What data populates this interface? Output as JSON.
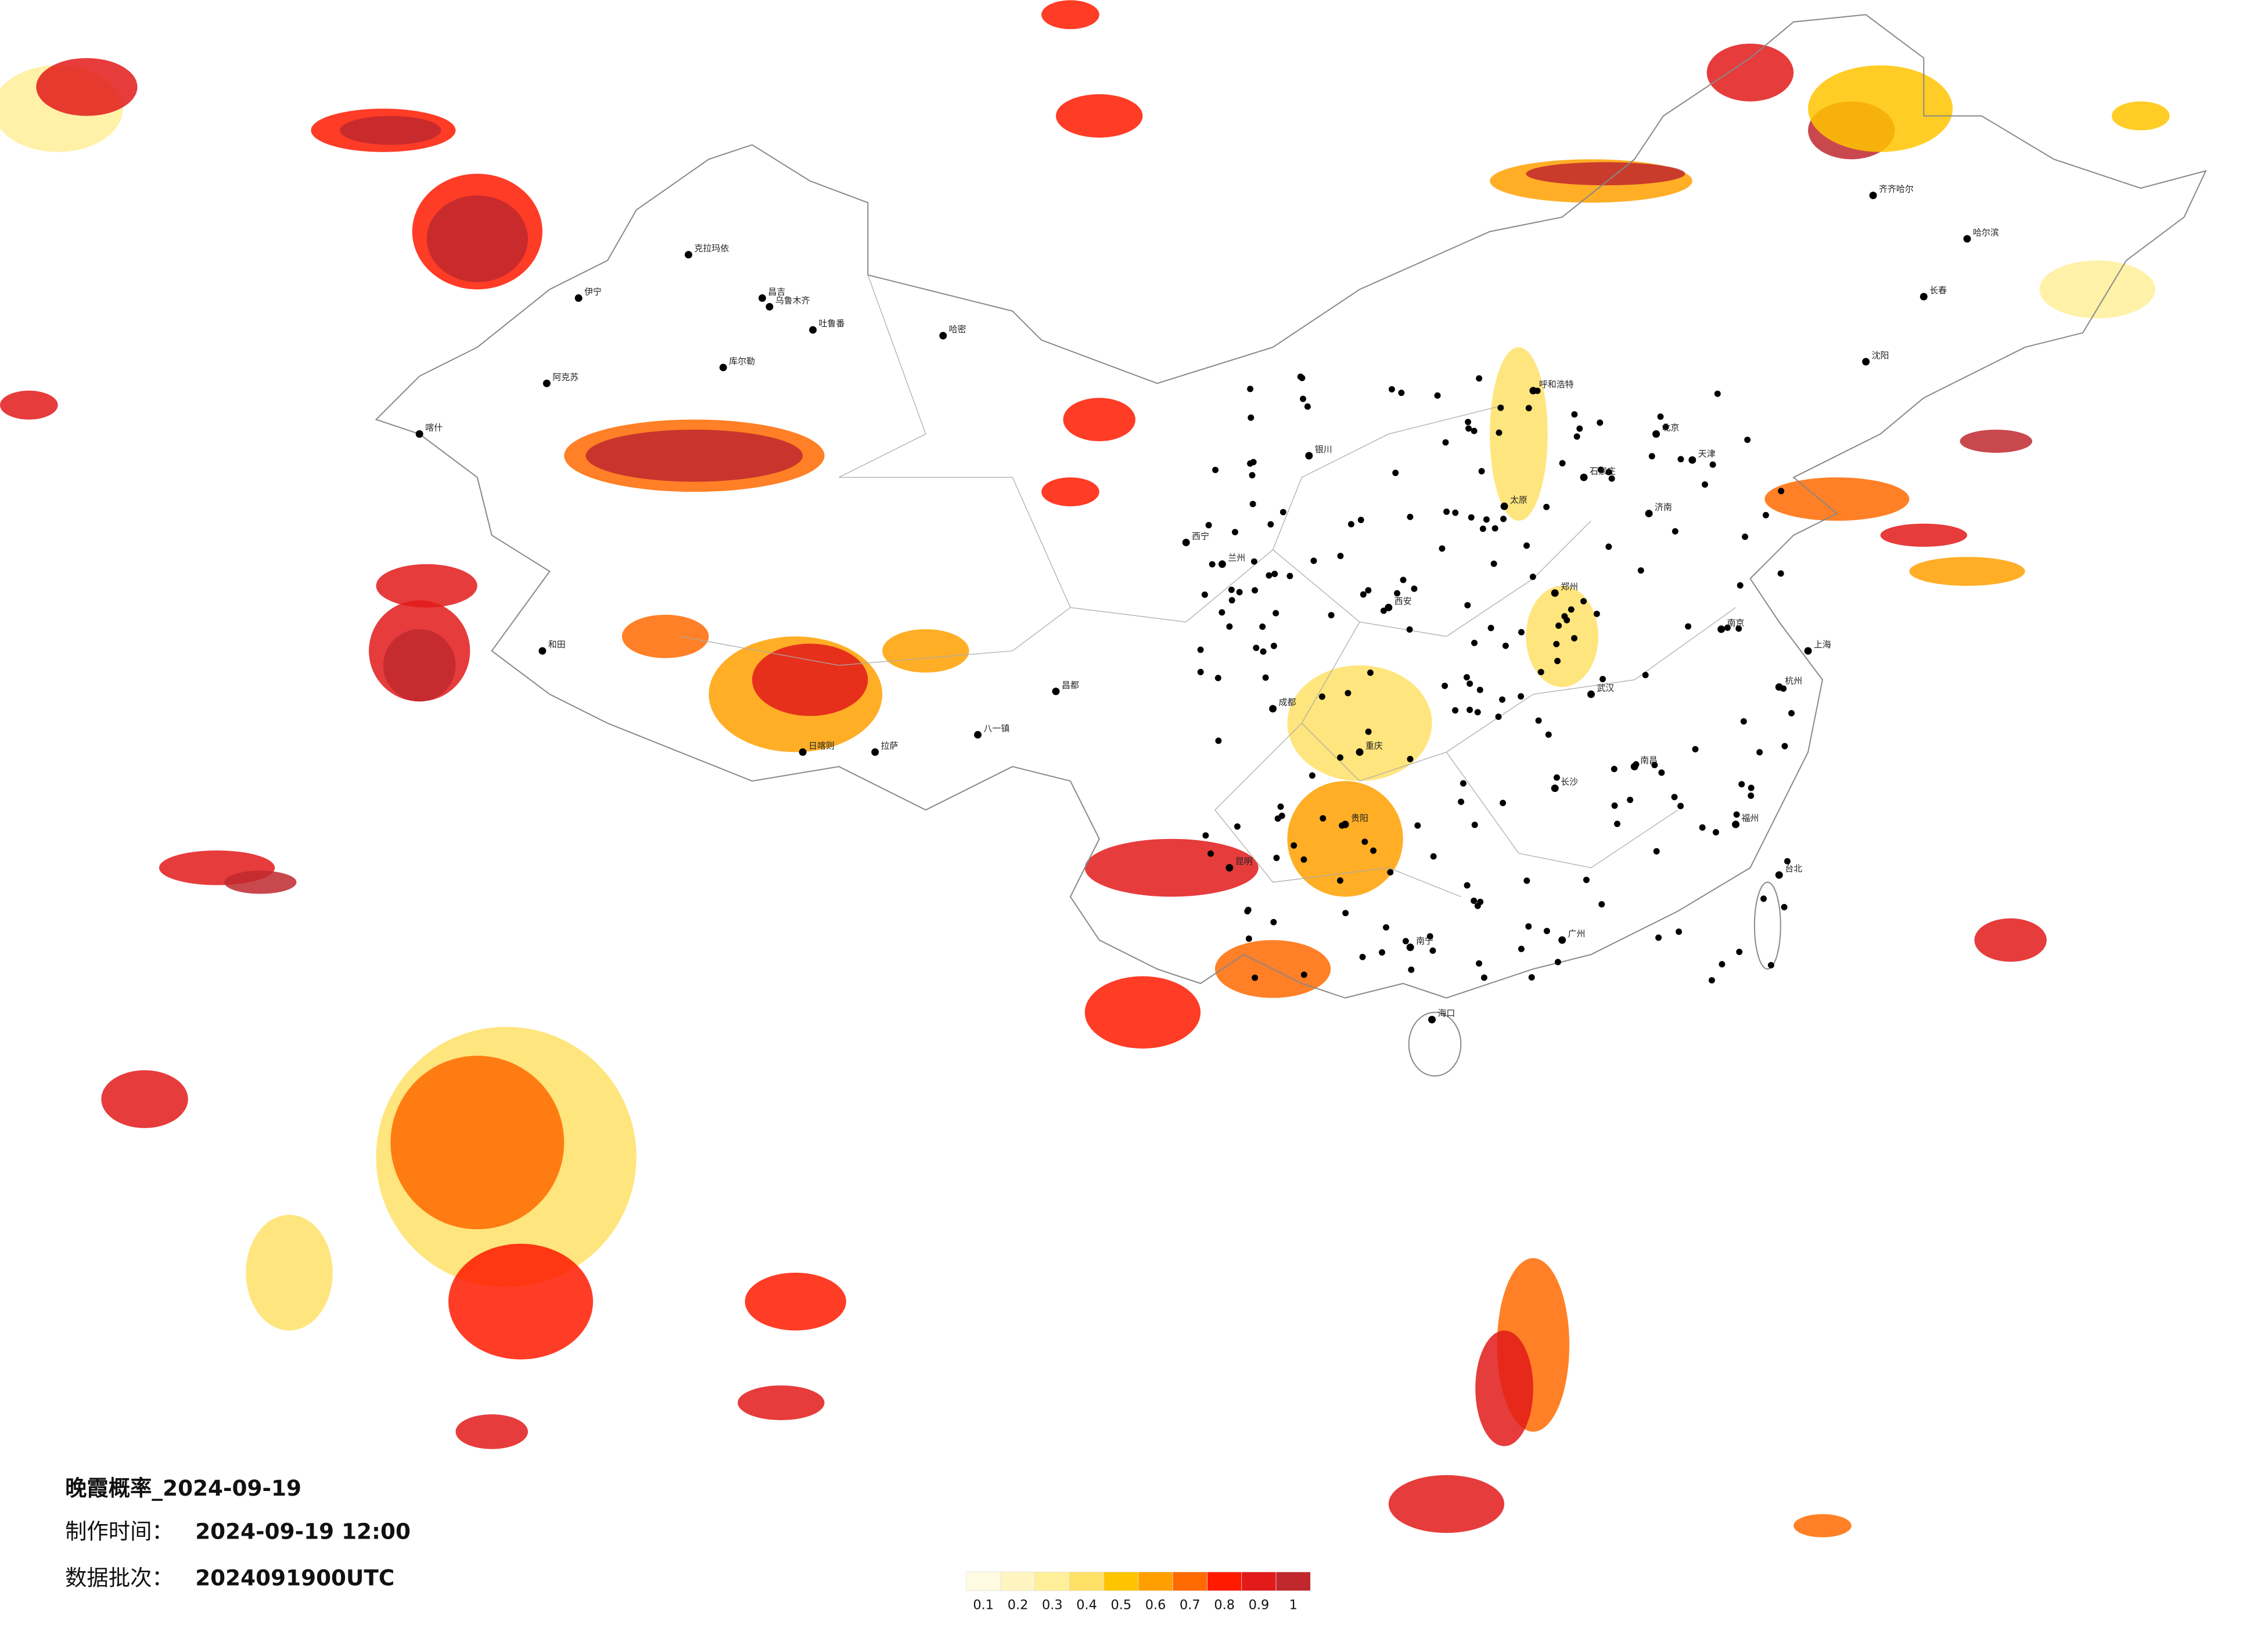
{
  "title": "晚霞概率_2024-09-19",
  "made_time_label": "制作时间：",
  "made_time": "2024-09-19 12:00",
  "batch_label": "数据批次：",
  "batch": "2024091900UTC",
  "colorbar": {
    "labels": [
      "0.1",
      "0.2",
      "0.3",
      "0.4",
      "0.5",
      "0.6",
      "0.7",
      "0.8",
      "0.9",
      "1"
    ],
    "colors": [
      "#fffbe3",
      "#fff5c0",
      "#ffef99",
      "#ffe066",
      "#ffc400",
      "#ffa000",
      "#ff6a00",
      "#ff1a00",
      "#e21a1a",
      "#c0282e"
    ]
  },
  "cities": [
    "克拉玛依",
    "昌吉",
    "乌鲁木齐",
    "吐鲁番",
    "哈密",
    "库尔勒",
    "阿克苏",
    "喀什",
    "和田",
    "伊宁",
    "拉萨",
    "日喀则",
    "八一镇",
    "昌都",
    "西宁",
    "兰州",
    "银川",
    "呼和浩特",
    "北京",
    "天津",
    "石家庄",
    "太原",
    "济南",
    "郑州",
    "西安",
    "成都",
    "重庆",
    "武汉",
    "长沙",
    "南昌",
    "南京",
    "上海",
    "杭州",
    "福州",
    "广州",
    "南宁",
    "昆明",
    "贵阳",
    "海口",
    "哈尔滨",
    "长春",
    "沈阳",
    "台北",
    "齐齐哈尔"
  ]
}
